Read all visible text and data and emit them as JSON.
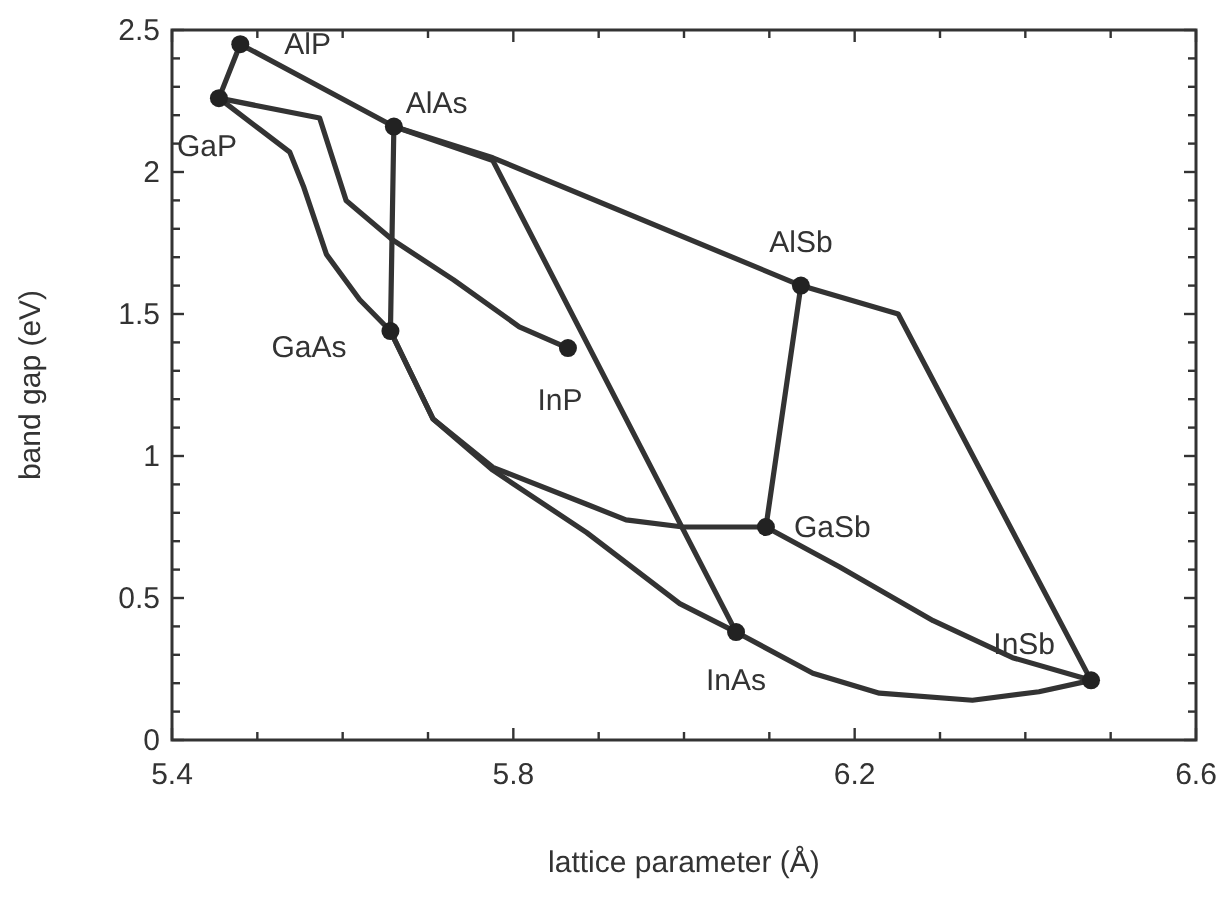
{
  "chart_data": {
    "type": "line",
    "xlabel": "lattice parameter (Å)",
    "ylabel": "band gap (eV)",
    "xlim": [
      5.4,
      6.6
    ],
    "ylim": [
      0,
      2.5
    ],
    "xticks": [
      5.4,
      {
        "value": 5.5,
        "label": null
      },
      {
        "value": 5.6,
        "label": null
      },
      {
        "value": 5.7,
        "label": null
      },
      5.8,
      {
        "value": 5.9,
        "label": null
      },
      {
        "value": 6.0,
        "label": null
      },
      {
        "value": 6.1,
        "label": null
      },
      6.2,
      {
        "value": 6.3,
        "label": null
      },
      {
        "value": 6.4,
        "label": null
      },
      {
        "value": 6.5,
        "label": null
      },
      6.6
    ],
    "yticks": [
      0,
      {
        "value": 0.1,
        "label": null
      },
      {
        "value": 0.2,
        "label": null
      },
      {
        "value": 0.3,
        "label": null
      },
      {
        "value": 0.4,
        "label": null
      },
      0.5,
      {
        "value": 0.6,
        "label": null
      },
      {
        "value": 0.7,
        "label": null
      },
      {
        "value": 0.8,
        "label": null
      },
      {
        "value": 0.9,
        "label": null
      },
      1.0,
      {
        "value": 1.1,
        "label": null
      },
      {
        "value": 1.2,
        "label": null
      },
      {
        "value": 1.3,
        "label": null
      },
      {
        "value": 1.4,
        "label": null
      },
      1.5,
      {
        "value": 1.6,
        "label": null
      },
      {
        "value": 1.7,
        "label": null
      },
      {
        "value": 1.8,
        "label": null
      },
      {
        "value": 1.9,
        "label": null
      },
      2.0,
      {
        "value": 2.1,
        "label": null
      },
      {
        "value": 2.2,
        "label": null
      },
      {
        "value": 2.3,
        "label": null
      },
      {
        "value": 2.4,
        "label": null
      },
      2.5
    ],
    "grid": false,
    "marker": "none",
    "line_style": "solid",
    "series": [
      {
        "color": "#333333",
        "x": [
          5.48,
          5.455
        ],
        "values": [
          2.45,
          2.26
        ]
      },
      {
        "color": "#333333",
        "x": [
          5.48,
          5.66,
          5.776,
          6.137,
          6.251,
          6.477
        ],
        "values": [
          2.45,
          2.16,
          2.05,
          1.6,
          1.5,
          0.21
        ]
      },
      {
        "color": "#333333",
        "x": [
          5.66,
          5.776,
          6.061
        ],
        "values": [
          2.16,
          2.04,
          0.38
        ]
      },
      {
        "color": "#333333",
        "x": [
          5.455,
          5.573,
          5.604,
          5.659,
          5.73,
          5.807,
          5.864
        ],
        "values": [
          2.26,
          2.19,
          1.9,
          1.76,
          1.62,
          1.455,
          1.38
        ]
      },
      {
        "color": "#333333",
        "x": [
          5.455,
          5.503,
          5.538,
          5.554,
          5.581,
          5.62,
          5.656
        ],
        "values": [
          2.26,
          2.15,
          2.07,
          1.95,
          1.71,
          1.55,
          1.44
        ]
      },
      {
        "color": "#333333",
        "x": [
          5.66,
          5.656
        ],
        "values": [
          2.16,
          1.44
        ]
      },
      {
        "color": "#333333",
        "x": [
          5.656,
          5.706,
          5.776,
          5.886,
          5.995,
          6.061,
          6.151,
          6.229,
          6.338,
          6.416,
          6.477
        ],
        "values": [
          1.44,
          1.13,
          0.95,
          0.73,
          0.48,
          0.38,
          0.235,
          0.165,
          0.14,
          0.17,
          0.21
        ]
      },
      {
        "color": "#333333",
        "x": [
          5.656,
          5.706,
          5.776,
          5.886,
          5.932,
          5.999,
          6.096
        ],
        "values": [
          1.44,
          1.13,
          0.96,
          0.83,
          0.775,
          0.75,
          0.75
        ]
      },
      {
        "color": "#333333",
        "x": [
          6.096,
          6.182,
          6.292,
          6.385,
          6.477
        ],
        "values": [
          0.75,
          0.61,
          0.42,
          0.29,
          0.21
        ]
      },
      {
        "color": "#333333",
        "x": [
          6.137,
          6.096
        ],
        "values": [
          1.6,
          0.75
        ]
      },
      {
        "type": "scatter",
        "color": "#222222",
        "marker": "circle",
        "x": [
          5.48,
          5.455,
          5.66,
          5.656,
          5.864,
          6.137,
          6.096,
          6.061,
          6.477
        ],
        "values": [
          2.45,
          2.26,
          2.16,
          1.44,
          1.38,
          1.6,
          0.75,
          0.38,
          0.21
        ]
      }
    ],
    "annotations": [
      {
        "text": "AlP",
        "x": 5.48,
        "y": 2.45
      },
      {
        "text": "GaP",
        "x": 5.455,
        "y": 2.26
      },
      {
        "text": "AlAs",
        "x": 5.66,
        "y": 2.16
      },
      {
        "text": "GaAs",
        "x": 5.656,
        "y": 1.44
      },
      {
        "text": "InP",
        "x": 5.864,
        "y": 1.38
      },
      {
        "text": "AlSb",
        "x": 6.137,
        "y": 1.6
      },
      {
        "text": "GaSb",
        "x": 6.096,
        "y": 0.75
      },
      {
        "text": "InAs",
        "x": 6.061,
        "y": 0.38
      },
      {
        "text": "InSb",
        "x": 6.477,
        "y": 0.21
      }
    ]
  }
}
